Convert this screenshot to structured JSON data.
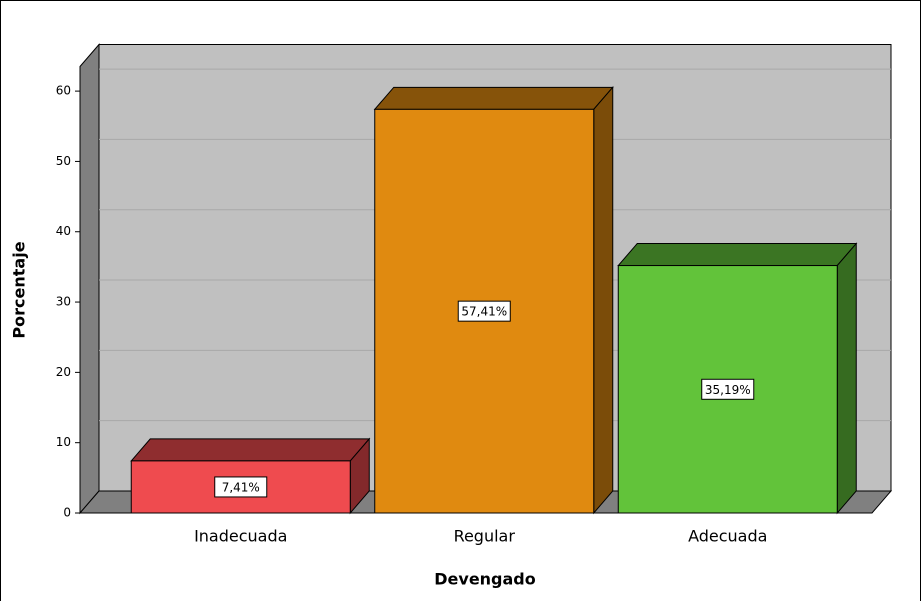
{
  "chart_data": {
    "type": "bar3d",
    "xlabel": "Devengado",
    "ylabel": "Porcentaje",
    "categories": [
      "Inadecuada",
      "Regular",
      "Adecuada"
    ],
    "values": [
      7.41,
      57.41,
      35.19
    ],
    "value_labels": [
      "7,41%",
      "57,41%",
      "35,19%"
    ],
    "colors": [
      "#ef4b4f",
      "#e08a10",
      "#62c33a"
    ],
    "ylim": [
      0,
      63.5
    ],
    "yticks": [
      0,
      10,
      20,
      30,
      40,
      50,
      60
    ],
    "grid": true
  }
}
